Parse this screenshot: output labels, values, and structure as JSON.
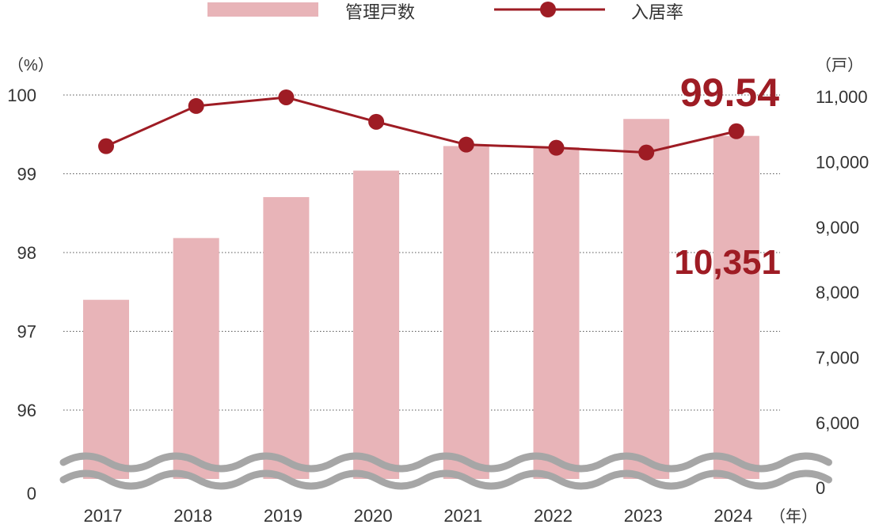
{
  "legend": {
    "bars_label": "管理戸数",
    "line_label": "入居率"
  },
  "axes": {
    "left_unit": "（%）",
    "right_unit": "（戸）",
    "x_unit": "（年）",
    "left_bottom_label": "0",
    "right_bottom_label": "0"
  },
  "callouts": {
    "occupancy_latest": "99.54",
    "units_latest": "10,351"
  },
  "colors": {
    "bar": "#e8b4b8",
    "line": "#9e1c24",
    "callout": "#9e1c24",
    "break_band": "#a6a6a6",
    "grid": "#555555",
    "text": "#333333"
  },
  "chart_data": {
    "type": "bar+line",
    "categories": [
      "2017",
      "2018",
      "2019",
      "2020",
      "2021",
      "2022",
      "2023",
      "2024"
    ],
    "series": [
      {
        "name": "管理戸数",
        "type": "bar",
        "axis": "right",
        "values": [
          7750,
          8730,
          9380,
          9800,
          10190,
          10170,
          10620,
          10351
        ]
      },
      {
        "name": "入居率",
        "type": "line",
        "axis": "left",
        "values": [
          99.35,
          99.86,
          99.97,
          99.66,
          99.37,
          99.33,
          99.27,
          99.54
        ]
      }
    ],
    "left_axis": {
      "ticks": [
        "96",
        "97",
        "98",
        "99",
        "100"
      ],
      "range": [
        96,
        100
      ]
    },
    "right_axis": {
      "ticks": [
        "6,000",
        "7,000",
        "8,000",
        "9,000",
        "10,000",
        "11,000"
      ],
      "range": [
        6000,
        11000
      ]
    },
    "axis_break": true,
    "grid": "dotted horizontal",
    "legend_position": "top-center"
  }
}
